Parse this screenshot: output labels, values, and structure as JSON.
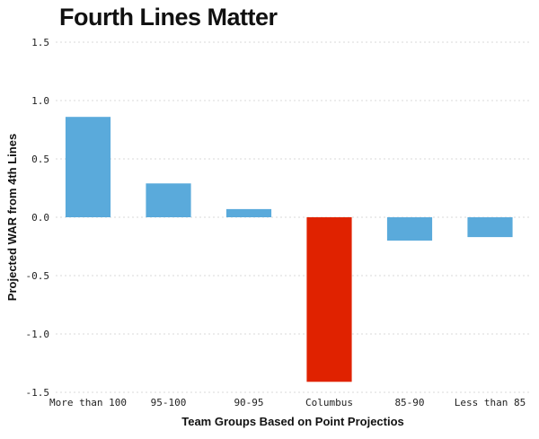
{
  "chart_data": {
    "type": "bar",
    "title": "Fourth Lines Matter",
    "xlabel": "Team Groups Based on Point Projectios",
    "ylabel": "Projected WAR from 4th Lines",
    "categories": [
      "More than 100",
      "95-100",
      "90-95",
      "Columbus",
      "85-90",
      "Less than 85"
    ],
    "values": [
      0.86,
      0.29,
      0.07,
      -1.41,
      -0.2,
      -0.17
    ],
    "highlight": "Columbus",
    "ylim": [
      -1.5,
      1.5
    ],
    "yticks": [
      "1.5",
      "1.0",
      "0.5",
      "0.0",
      "-0.5",
      "-1.0",
      "-1.5"
    ],
    "grid": true,
    "colors": {
      "default_bar": "#5aaadb",
      "highlight_bar": "#e02200"
    }
  }
}
